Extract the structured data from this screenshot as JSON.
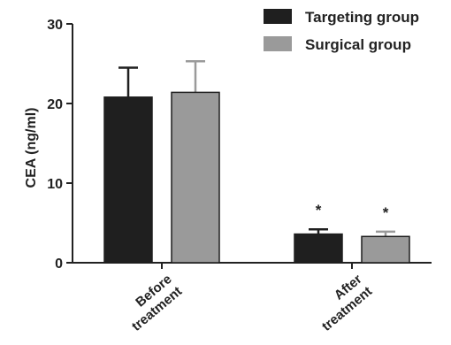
{
  "chart_data": {
    "type": "bar",
    "ylabel": "CEA (ng/ml)",
    "ylim": [
      0,
      30
    ],
    "yticks": [
      0,
      10,
      20,
      30
    ],
    "categories": [
      {
        "lines": [
          "Before",
          "treatment"
        ]
      },
      {
        "lines": [
          "After",
          "treatment"
        ]
      }
    ],
    "series": [
      {
        "name": "Targeting group",
        "color": "#1f1f1f",
        "values": [
          20.8,
          3.6
        ],
        "errors": [
          3.7,
          0.6
        ],
        "annotations": [
          "",
          "*"
        ]
      },
      {
        "name": "Surgical group",
        "color": "#9a9a9a",
        "values": [
          21.4,
          3.3
        ],
        "errors": [
          3.9,
          0.6
        ],
        "annotations": [
          "",
          "*"
        ]
      }
    ],
    "legend_position": "top-right",
    "grid": false
  }
}
